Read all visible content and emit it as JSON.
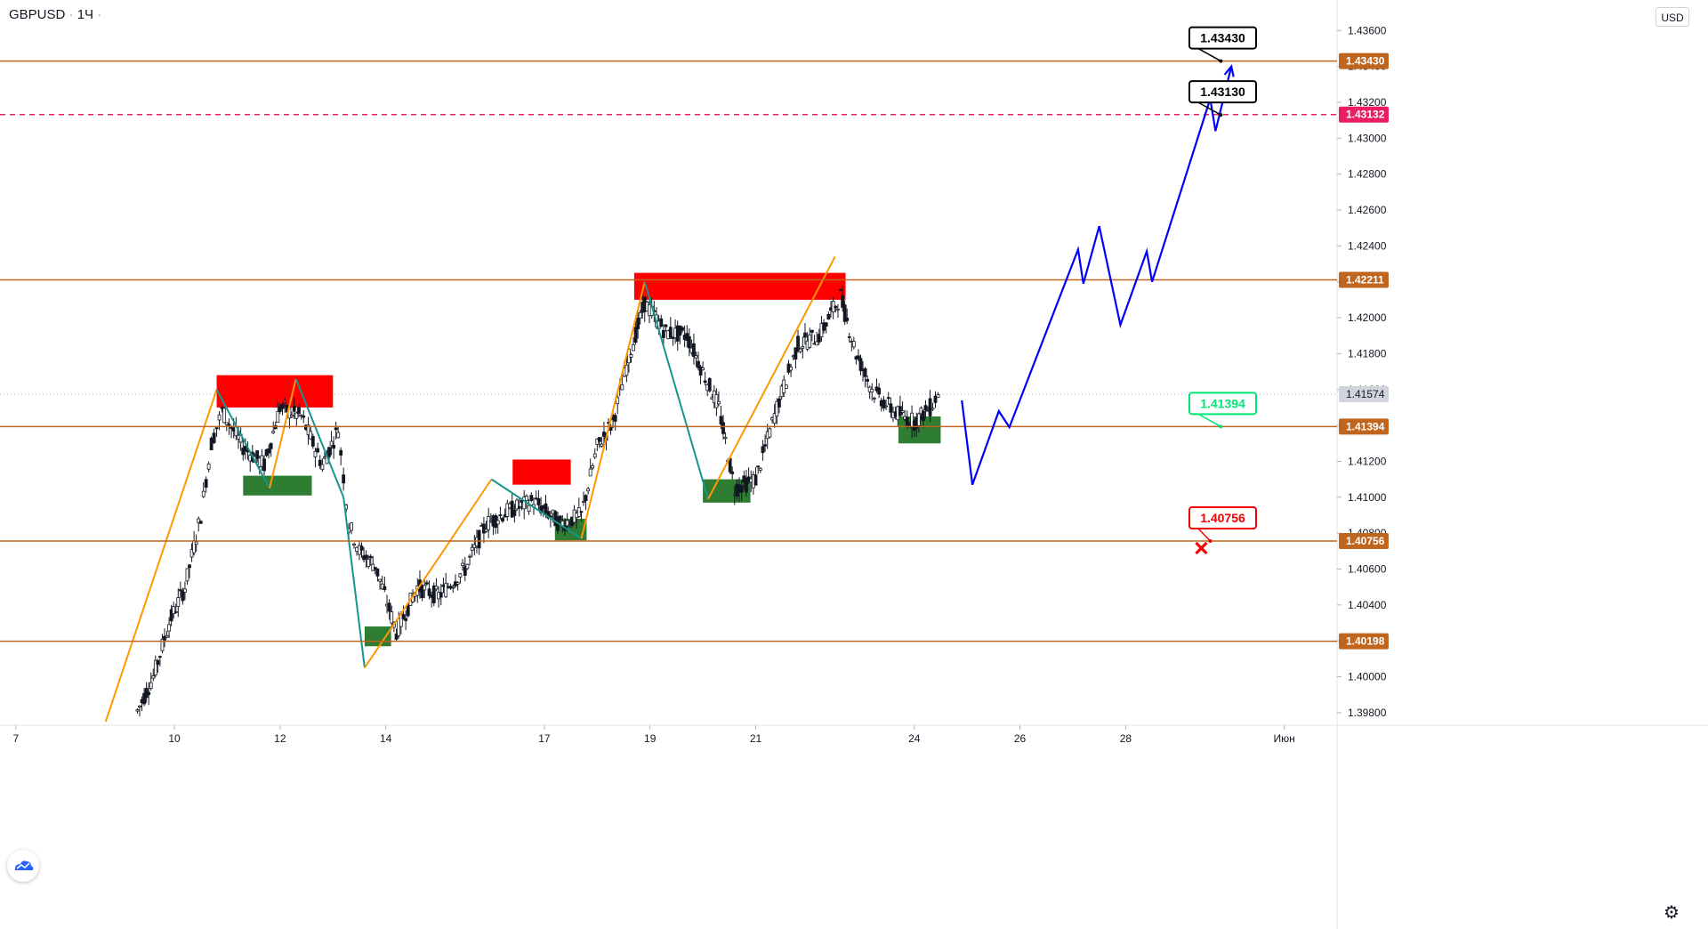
{
  "header": {
    "symbol": "GBPUSD",
    "separator": "·",
    "interval": "1Ч",
    "extra": "·"
  },
  "currency_button": "USD",
  "icons": {
    "logo": "tradingview-cloud-logo-icon",
    "settings": "gear-icon"
  },
  "colors": {
    "level_line": "#c0651d",
    "dashed_level": "#e91e63",
    "supply_zone": "#ff0000",
    "demand_zone": "#2e7d32",
    "zigzag_up": "#ff9800",
    "zigzag_down": "#15968d",
    "projection": "#0000ff",
    "target_label_bg": "#000000",
    "entry_label": "#00e676",
    "stop_label": "#f50000"
  },
  "chart_data": {
    "type": "line",
    "symbol": "GBPUSD",
    "timeframe": "1H",
    "x_ticks": [
      "7",
      "10",
      "12",
      "14",
      "17",
      "19",
      "21",
      "24",
      "26",
      "28",
      "Июн"
    ],
    "y_ticks": [
      "1.43600",
      "1.43400",
      "1.43200",
      "1.43000",
      "1.42800",
      "1.42600",
      "1.42400",
      "1.42200",
      "1.42000",
      "1.41800",
      "1.41600",
      "1.41400",
      "1.41200",
      "1.41000",
      "1.40800",
      "1.40600",
      "1.40400",
      "1.40200",
      "1.40000",
      "1.39800"
    ],
    "y_tick_values": [
      1.436,
      1.434,
      1.432,
      1.43,
      1.428,
      1.426,
      1.424,
      1.422,
      1.42,
      1.418,
      1.416,
      1.414,
      1.412,
      1.41,
      1.408,
      1.406,
      1.404,
      1.402,
      1.4,
      1.398
    ],
    "ylim": [
      1.3973,
      1.4377
    ],
    "xlim_days": [
      6.7,
      32.0
    ],
    "price_levels": [
      {
        "label": "1.43430",
        "value": 1.4343,
        "style": "solid"
      },
      {
        "label": "1.43132",
        "value": 1.43132,
        "style": "dashed"
      },
      {
        "label": "1.42211",
        "value": 1.42211,
        "style": "solid"
      },
      {
        "label": "1.41394",
        "value": 1.41394,
        "style": "solid"
      },
      {
        "label": "1.40756",
        "value": 1.40756,
        "style": "solid"
      },
      {
        "label": "1.40198",
        "value": 1.40198,
        "style": "solid"
      }
    ],
    "last_price": {
      "label": "1.41574",
      "value": 1.41574
    },
    "annotations": [
      {
        "text": "1.43430",
        "kind": "target",
        "value": 1.4343,
        "x_day": 29.8
      },
      {
        "text": "1.43130",
        "kind": "target",
        "value": 1.4313,
        "x_day": 29.8
      },
      {
        "text": "1.41394",
        "kind": "entry",
        "value": 1.41394,
        "x_day": 29.8
      },
      {
        "text": "1.40756",
        "kind": "stop",
        "value": 1.40756,
        "x_day": 29.6
      }
    ],
    "supply_zones": [
      {
        "x_from": 10.8,
        "x_to": 13.0,
        "y_from": 1.415,
        "y_to": 1.4168
      },
      {
        "x_from": 16.4,
        "x_to": 17.5,
        "y_from": 1.4107,
        "y_to": 1.4121
      },
      {
        "x_from": 18.7,
        "x_to": 22.7,
        "y_from": 1.421,
        "y_to": 1.4225
      }
    ],
    "demand_zones": [
      {
        "x_from": 11.3,
        "x_to": 12.6,
        "y_from": 1.4101,
        "y_to": 1.4112
      },
      {
        "x_from": 13.6,
        "x_to": 14.1,
        "y_from": 1.4017,
        "y_to": 1.4028
      },
      {
        "x_from": 17.2,
        "x_to": 17.8,
        "y_from": 1.4076,
        "y_to": 1.4088
      },
      {
        "x_from": 20.0,
        "x_to": 20.9,
        "y_from": 1.4097,
        "y_to": 1.411
      },
      {
        "x_from": 23.7,
        "x_to": 24.5,
        "y_from": 1.413,
        "y_to": 1.4145
      }
    ],
    "zigzag": [
      {
        "x": 8.7,
        "y": 1.3975
      },
      {
        "x": 10.8,
        "y": 1.416
      },
      {
        "x": 11.8,
        "y": 1.4105
      },
      {
        "x": 12.3,
        "y": 1.4166
      },
      {
        "x": 13.2,
        "y": 1.41
      },
      {
        "x": 13.6,
        "y": 1.4005
      },
      {
        "x": 16.0,
        "y": 1.411
      },
      {
        "x": 17.7,
        "y": 1.4077
      },
      {
        "x": 18.9,
        "y": 1.422
      },
      {
        "x": 20.1,
        "y": 1.4099
      },
      {
        "x": 22.5,
        "y": 1.4234
      }
    ],
    "projection": [
      {
        "x": 24.9,
        "y": 1.4154
      },
      {
        "x": 25.1,
        "y": 1.4107
      },
      {
        "x": 25.6,
        "y": 1.4148
      },
      {
        "x": 25.8,
        "y": 1.4139
      },
      {
        "x": 27.1,
        "y": 1.4238
      },
      {
        "x": 27.2,
        "y": 1.4219
      },
      {
        "x": 27.5,
        "y": 1.4251
      },
      {
        "x": 27.9,
        "y": 1.4196
      },
      {
        "x": 28.4,
        "y": 1.4237
      },
      {
        "x": 28.5,
        "y": 1.422
      },
      {
        "x": 29.6,
        "y": 1.4322
      },
      {
        "x": 29.7,
        "y": 1.4304
      },
      {
        "x": 30.0,
        "y": 1.434
      }
    ],
    "price_path": [
      {
        "x": 9.3,
        "y": 1.3981
      },
      {
        "x": 9.6,
        "y": 1.4
      },
      {
        "x": 9.9,
        "y": 1.403
      },
      {
        "x": 10.2,
        "y": 1.405
      },
      {
        "x": 10.5,
        "y": 1.409
      },
      {
        "x": 10.7,
        "y": 1.413
      },
      {
        "x": 10.9,
        "y": 1.4148
      },
      {
        "x": 11.3,
        "y": 1.4128
      },
      {
        "x": 11.7,
        "y": 1.4118
      },
      {
        "x": 12.0,
        "y": 1.415
      },
      {
        "x": 12.4,
        "y": 1.4145
      },
      {
        "x": 12.8,
        "y": 1.4118
      },
      {
        "x": 13.1,
        "y": 1.4138
      },
      {
        "x": 13.3,
        "y": 1.4085
      },
      {
        "x": 13.5,
        "y": 1.407
      },
      {
        "x": 13.8,
        "y": 1.4062
      },
      {
        "x": 14.2,
        "y": 1.4025
      },
      {
        "x": 14.6,
        "y": 1.405
      },
      {
        "x": 15.0,
        "y": 1.4045
      },
      {
        "x": 15.5,
        "y": 1.406
      },
      {
        "x": 15.9,
        "y": 1.4085
      },
      {
        "x": 16.3,
        "y": 1.4092
      },
      {
        "x": 16.8,
        "y": 1.4098
      },
      {
        "x": 17.3,
        "y": 1.4085
      },
      {
        "x": 17.7,
        "y": 1.409
      },
      {
        "x": 18.0,
        "y": 1.4128
      },
      {
        "x": 18.3,
        "y": 1.4142
      },
      {
        "x": 18.6,
        "y": 1.4178
      },
      {
        "x": 18.9,
        "y": 1.4208
      },
      {
        "x": 19.3,
        "y": 1.4192
      },
      {
        "x": 19.7,
        "y": 1.419
      },
      {
        "x": 20.0,
        "y": 1.417
      },
      {
        "x": 20.3,
        "y": 1.415
      },
      {
        "x": 20.6,
        "y": 1.4105
      },
      {
        "x": 21.0,
        "y": 1.411
      },
      {
        "x": 21.4,
        "y": 1.415
      },
      {
        "x": 21.8,
        "y": 1.4185
      },
      {
        "x": 22.2,
        "y": 1.419
      },
      {
        "x": 22.6,
        "y": 1.4212
      },
      {
        "x": 22.9,
        "y": 1.418
      },
      {
        "x": 23.2,
        "y": 1.416
      },
      {
        "x": 23.6,
        "y": 1.4148
      },
      {
        "x": 24.0,
        "y": 1.4142
      },
      {
        "x": 24.3,
        "y": 1.415
      },
      {
        "x": 24.5,
        "y": 1.416
      }
    ]
  }
}
